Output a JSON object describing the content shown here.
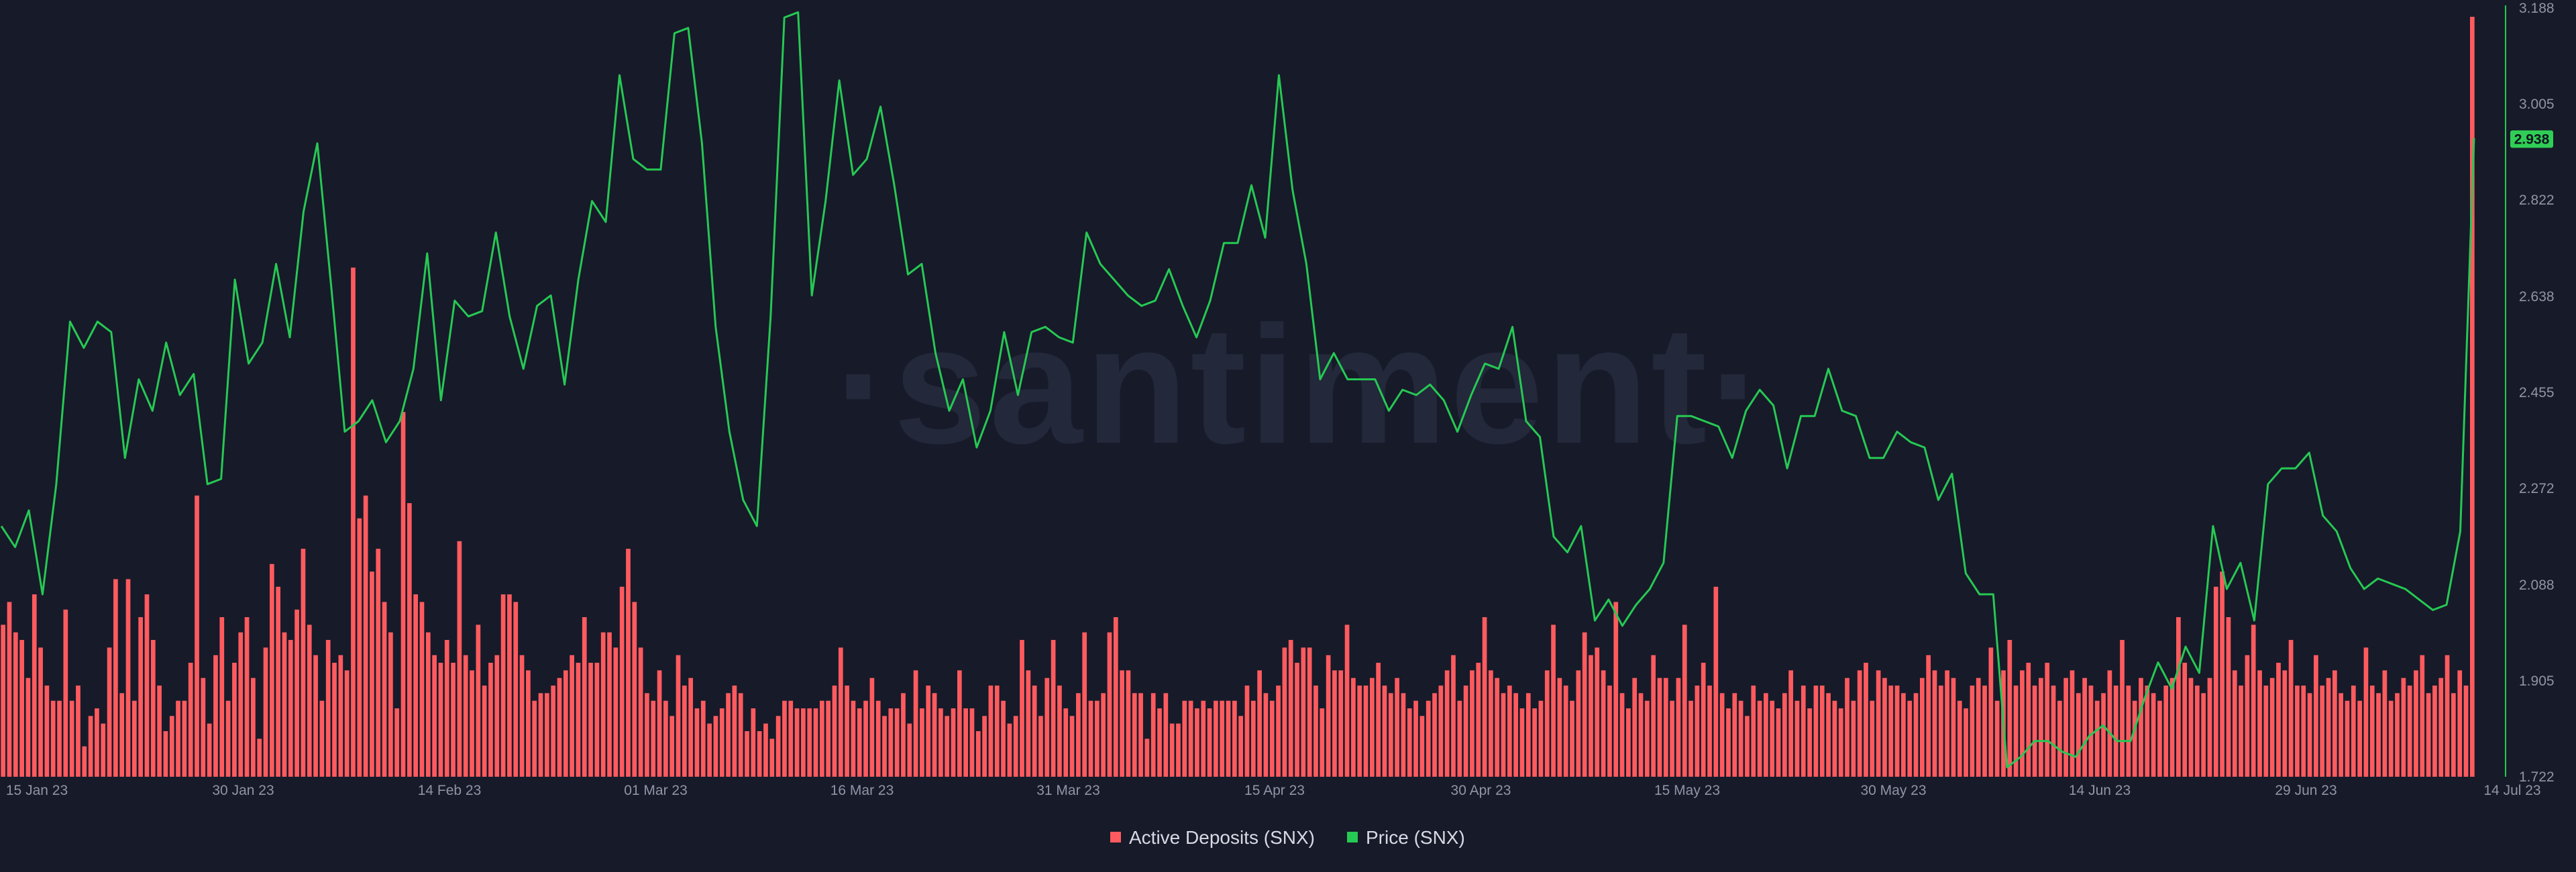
{
  "watermark": "·santiment·",
  "chart_data": {
    "type": "bar+line",
    "x_tick_labels": [
      "15 Jan 23",
      "30 Jan 23",
      "14 Feb 23",
      "01 Mar 23",
      "16 Mar 23",
      "31 Mar 23",
      "15 Apr 23",
      "30 Apr 23",
      "15 May 23",
      "30 May 23",
      "14 Jun 23",
      "29 Jun 23",
      "14 Jul 23"
    ],
    "y_right_ticks": [
      "3.188",
      "3.005",
      "2.822",
      "2.638",
      "2.455",
      "2.272",
      "2.088",
      "1.905",
      "1.722"
    ],
    "y_right_range": [
      1.722,
      3.188
    ],
    "grid": false,
    "legend_position": "bottom-center",
    "current_price_label": "2.938",
    "colors": {
      "deposits": "#ff5b5f",
      "price": "#26c953",
      "price_badge": "#2fcf55"
    },
    "series": [
      {
        "name": "Active Deposits (SNX)",
        "type": "bar",
        "axis": "hidden-left",
        "values": [
          20,
          23,
          19,
          18,
          13,
          24,
          17,
          12,
          10,
          10,
          22,
          10,
          12,
          4,
          8,
          9,
          7,
          17,
          26,
          11,
          26,
          10,
          21,
          24,
          18,
          12,
          6,
          8,
          10,
          10,
          15,
          37,
          13,
          7,
          16,
          21,
          10,
          15,
          19,
          21,
          13,
          5,
          17,
          28,
          25,
          19,
          18,
          22,
          30,
          20,
          16,
          10,
          18,
          15,
          16,
          14,
          67,
          34,
          37,
          27,
          30,
          23,
          19,
          9,
          48,
          36,
          24,
          23,
          19,
          16,
          15,
          18,
          15,
          31,
          16,
          14,
          20,
          12,
          15,
          16,
          24,
          24,
          23,
          16,
          14,
          10,
          11,
          11,
          12,
          13,
          14,
          16,
          15,
          21,
          15,
          15,
          19,
          19,
          17,
          25,
          30,
          23,
          17,
          11,
          10,
          14,
          10,
          8,
          16,
          12,
          13,
          9,
          10,
          7,
          8,
          9,
          11,
          12,
          11,
          6,
          9,
          6,
          7,
          5,
          8,
          10,
          10,
          9,
          9,
          9,
          9,
          10,
          10,
          12,
          17,
          12,
          10,
          9,
          10,
          13,
          10,
          8,
          9,
          9,
          11,
          7,
          14,
          9,
          12,
          11,
          9,
          8,
          9,
          14,
          9,
          9,
          6,
          8,
          12,
          12,
          10,
          7,
          8,
          18,
          14,
          12,
          8,
          13,
          18,
          12,
          9,
          8,
          11,
          19,
          10,
          10,
          11,
          19,
          21,
          14,
          14,
          11,
          11,
          5,
          11,
          9,
          11,
          7,
          7,
          10,
          10,
          9,
          10,
          9,
          10,
          10,
          10,
          10,
          8,
          12,
          10,
          14,
          11,
          10,
          12,
          17,
          18,
          15,
          17,
          17,
          12,
          9,
          16,
          14,
          14,
          20,
          13,
          12,
          12,
          13,
          15,
          12,
          11,
          13,
          11,
          9,
          10,
          8,
          10,
          11,
          12,
          14,
          16,
          10,
          12,
          14,
          15,
          21,
          14,
          13,
          11,
          12,
          11,
          9,
          11,
          9,
          10,
          14,
          20,
          13,
          12,
          10,
          14,
          19,
          16,
          17,
          14,
          12,
          23,
          11,
          9,
          13,
          11,
          10,
          16,
          13,
          13,
          10,
          13,
          20,
          10,
          12,
          15,
          12,
          25,
          11,
          9,
          11,
          10,
          8,
          12,
          10,
          11,
          10,
          9,
          11,
          14,
          10,
          12,
          9,
          12,
          12,
          11,
          10,
          9,
          13,
          10,
          14,
          15,
          10,
          14,
          13,
          12,
          12,
          11,
          10,
          11,
          13,
          16,
          14,
          12,
          14,
          13,
          10,
          9,
          12,
          13,
          12,
          17,
          10,
          14,
          18,
          12,
          14,
          15,
          12,
          13,
          15,
          12,
          10,
          13,
          14,
          11,
          13,
          12,
          10,
          11,
          14,
          12,
          18,
          12,
          10,
          13,
          12,
          11,
          10,
          12,
          13,
          21,
          15,
          13,
          12,
          11,
          13,
          25,
          27,
          21,
          14,
          12,
          16,
          20,
          14,
          12,
          13,
          15,
          14,
          18,
          12,
          12,
          11,
          16,
          12,
          13,
          14,
          11,
          10,
          12,
          10,
          17,
          12,
          11,
          14,
          10,
          11,
          13,
          12,
          14,
          16,
          11,
          12,
          13,
          16,
          11,
          14,
          12,
          100
        ]
      },
      {
        "name": "Price (SNX)",
        "type": "line",
        "axis": "right",
        "values": [
          2.2,
          2.16,
          2.23,
          2.07,
          2.28,
          2.59,
          2.54,
          2.59,
          2.57,
          2.33,
          2.48,
          2.42,
          2.55,
          2.45,
          2.49,
          2.28,
          2.29,
          2.67,
          2.51,
          2.55,
          2.7,
          2.56,
          2.8,
          2.93,
          2.66,
          2.38,
          2.4,
          2.44,
          2.36,
          2.4,
          2.5,
          2.72,
          2.44,
          2.63,
          2.6,
          2.61,
          2.76,
          2.6,
          2.5,
          2.62,
          2.64,
          2.47,
          2.67,
          2.82,
          2.78,
          3.06,
          2.9,
          2.88,
          2.88,
          3.14,
          3.15,
          2.93,
          2.58,
          2.38,
          2.25,
          2.2,
          2.6,
          3.17,
          3.18,
          2.64,
          2.82,
          3.05,
          2.87,
          2.9,
          3.0,
          2.85,
          2.68,
          2.7,
          2.53,
          2.42,
          2.48,
          2.35,
          2.42,
          2.57,
          2.45,
          2.57,
          2.58,
          2.56,
          2.55,
          2.76,
          2.7,
          2.67,
          2.64,
          2.62,
          2.63,
          2.69,
          2.62,
          2.56,
          2.63,
          2.74,
          2.74,
          2.85,
          2.75,
          3.06,
          2.84,
          2.7,
          2.48,
          2.53,
          2.48,
          2.48,
          2.48,
          2.42,
          2.46,
          2.45,
          2.47,
          2.44,
          2.38,
          2.45,
          2.51,
          2.5,
          2.58,
          2.4,
          2.37,
          2.18,
          2.15,
          2.2,
          2.02,
          2.06,
          2.01,
          2.05,
          2.08,
          2.13,
          2.41,
          2.41,
          2.4,
          2.39,
          2.33,
          2.42,
          2.46,
          2.43,
          2.31,
          2.41,
          2.41,
          2.5,
          2.42,
          2.41,
          2.33,
          2.33,
          2.38,
          2.36,
          2.35,
          2.25,
          2.3,
          2.11,
          2.07,
          2.07,
          1.74,
          1.76,
          1.79,
          1.79,
          1.77,
          1.76,
          1.8,
          1.82,
          1.79,
          1.79,
          1.87,
          1.94,
          1.89,
          1.97,
          1.92,
          2.2,
          2.08,
          2.13,
          2.02,
          2.28,
          2.31,
          2.31,
          2.34,
          2.22,
          2.19,
          2.12,
          2.08,
          2.1,
          2.09,
          2.08,
          2.06,
          2.04,
          2.05,
          2.19,
          2.94
        ]
      }
    ]
  }
}
